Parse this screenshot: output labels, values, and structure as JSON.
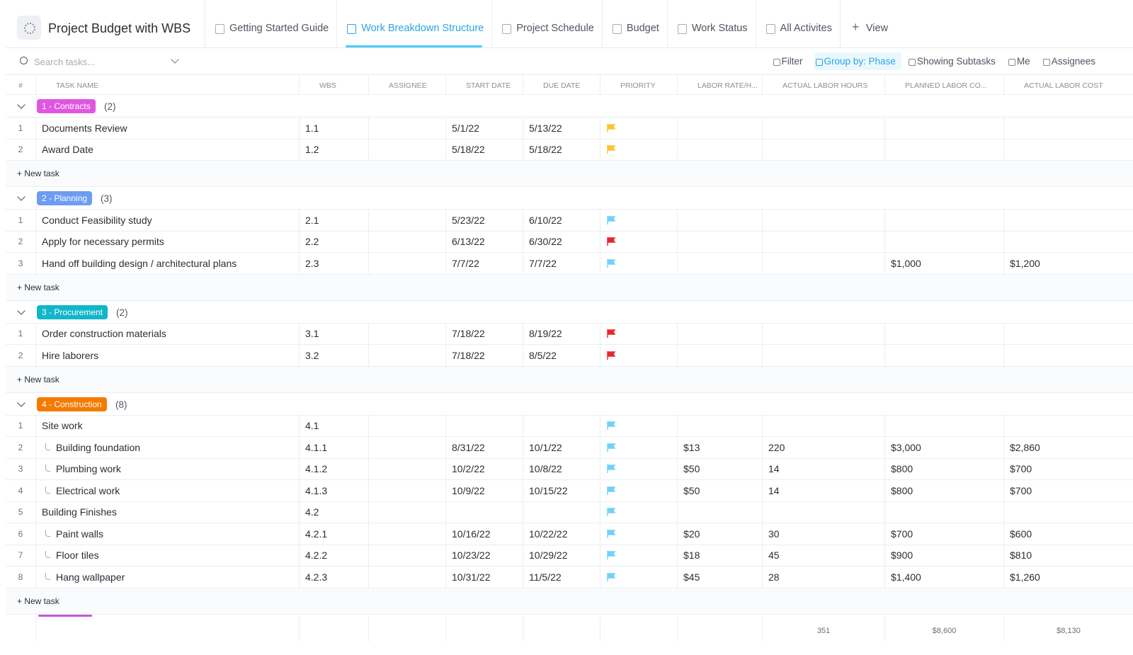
{
  "header": {
    "title": "Project Budget with WBS",
    "tabs": [
      "Getting Started Guide",
      "Work Breakdown Structure",
      "Project Schedule",
      "Budget",
      "Work Status",
      "All Activites"
    ],
    "active_tab": 1,
    "add_view": "View"
  },
  "toolbar": {
    "search_placeholder": "Search tasks...",
    "filter": "Filter",
    "group_by": "Group by: Phase",
    "subtasks": "Showing Subtasks",
    "me": "Me",
    "assignees": "Assignees"
  },
  "table": {
    "columns": [
      "#",
      "TASK NAME",
      "WBS",
      "ASSIGNEE",
      "START DATE",
      "DUE DATE",
      "PRIORITY",
      "LABOR RATE/H...",
      "ACTUAL LABOR HOURS",
      "PLANNED LABOR CO...",
      "ACTUAL LABOR COST"
    ],
    "new_task": "+ New task",
    "groups": [
      {
        "label": "1 - Contracts",
        "count": "(2)",
        "color": "#e056e0",
        "tasks": [
          {
            "num": 1,
            "name": "Documents Review",
            "wbs": "1.1",
            "start": "5/1/22",
            "due": "5/13/22",
            "priority": "yellow"
          },
          {
            "num": 2,
            "name": "Award Date",
            "wbs": "1.2",
            "start": "5/18/22",
            "due": "5/18/22",
            "priority": "yellow"
          }
        ]
      },
      {
        "label": "2 - Planning",
        "count": "(3)",
        "color": "#6c9cf4",
        "tasks": [
          {
            "num": 1,
            "name": "Conduct Feasibility study",
            "wbs": "2.1",
            "start": "5/23/22",
            "due": "6/10/22",
            "priority": "blue"
          },
          {
            "num": 2,
            "name": "Apply for necessary permits",
            "wbs": "2.2",
            "start": "6/13/22",
            "due": "6/30/22",
            "priority": "red"
          },
          {
            "num": 3,
            "name": "Hand off building design / architectural plans",
            "wbs": "2.3",
            "start": "7/7/22",
            "due": "7/7/22",
            "priority": "blue",
            "planned": "$1,000",
            "actual": "$1,200"
          }
        ]
      },
      {
        "label": "3 - Procurement",
        "count": "(2)",
        "color": "#10b6c9",
        "tasks": [
          {
            "num": 1,
            "name": "Order construction materials",
            "wbs": "3.1",
            "start": "7/18/22",
            "due": "8/19/22",
            "priority": "red"
          },
          {
            "num": 2,
            "name": "Hire laborers",
            "wbs": "3.2",
            "start": "7/18/22",
            "due": "8/5/22",
            "priority": "red"
          }
        ]
      },
      {
        "label": "4 - Construction",
        "count": "(8)",
        "color": "#f57a00",
        "tasks": [
          {
            "num": 1,
            "name": "Site work",
            "wbs": "4.1",
            "priority": "blue"
          },
          {
            "num": 2,
            "name": "Building foundation",
            "subtask": true,
            "wbs": "4.1.1",
            "start": "8/31/22",
            "due": "10/1/22",
            "priority": "blue",
            "rate": "$13",
            "hours": 220,
            "planned": "$3,000",
            "actual": "$2,860"
          },
          {
            "num": 3,
            "name": "Plumbing work",
            "subtask": true,
            "wbs": "4.1.2",
            "start": "10/2/22",
            "due": "10/8/22",
            "priority": "blue",
            "rate": "$50",
            "hours": 14,
            "planned": "$800",
            "actual": "$700"
          },
          {
            "num": 4,
            "name": "Electrical work",
            "subtask": true,
            "wbs": "4.1.3",
            "start": "10/9/22",
            "due": "10/15/22",
            "priority": "blue",
            "rate": "$50",
            "hours": 14,
            "planned": "$800",
            "actual": "$700"
          },
          {
            "num": 5,
            "name": "Building Finishes",
            "wbs": "4.2",
            "priority": "blue"
          },
          {
            "num": 6,
            "name": "Paint walls",
            "subtask": true,
            "wbs": "4.2.1",
            "start": "10/16/22",
            "due": "10/22/22",
            "priority": "blue",
            "rate": "$20",
            "hours": 30,
            "planned": "$700",
            "actual": "$600"
          },
          {
            "num": 7,
            "name": "Floor tiles",
            "subtask": true,
            "wbs": "4.2.2",
            "start": "10/23/22",
            "due": "10/29/22",
            "priority": "blue",
            "rate": "$18",
            "hours": 45,
            "planned": "$900",
            "actual": "$810"
          },
          {
            "num": 8,
            "name": "Hang wallpaper",
            "subtask": true,
            "wbs": "4.2.3",
            "start": "10/31/22",
            "due": "11/5/22",
            "priority": "blue",
            "rate": "$45",
            "hours": 28,
            "planned": "$1,400",
            "actual": "$1,260"
          }
        ]
      }
    ],
    "totals": {
      "hours": 351,
      "planned": "$8,600",
      "actual": "$8,130"
    }
  }
}
